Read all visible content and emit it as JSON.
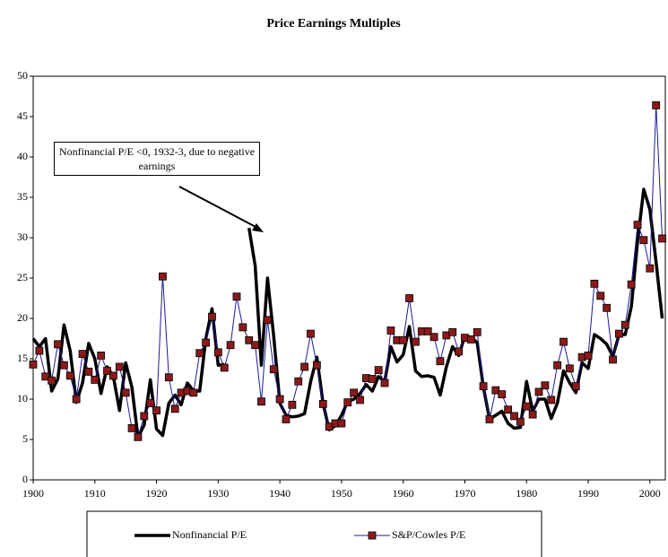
{
  "chart_data": {
    "type": "line",
    "title": "Price Earnings Multiples",
    "annotation": "Nonfinancial P/E <0, 1932-3, due to negative earnings",
    "x": [
      1900,
      1901,
      1902,
      1903,
      1904,
      1905,
      1906,
      1907,
      1908,
      1909,
      1910,
      1911,
      1912,
      1913,
      1914,
      1915,
      1916,
      1917,
      1918,
      1919,
      1920,
      1921,
      1922,
      1923,
      1924,
      1925,
      1926,
      1927,
      1928,
      1929,
      1930,
      1931,
      1932,
      1933,
      1934,
      1935,
      1936,
      1937,
      1938,
      1939,
      1940,
      1941,
      1942,
      1943,
      1944,
      1945,
      1946,
      1947,
      1948,
      1949,
      1950,
      1951,
      1952,
      1953,
      1954,
      1955,
      1956,
      1957,
      1958,
      1959,
      1960,
      1961,
      1962,
      1963,
      1964,
      1965,
      1966,
      1967,
      1968,
      1969,
      1970,
      1971,
      1972,
      1973,
      1974,
      1975,
      1976,
      1977,
      1978,
      1979,
      1980,
      1981,
      1982,
      1983,
      1984,
      1985,
      1986,
      1987,
      1988,
      1989,
      1990,
      1991,
      1992,
      1993,
      1994,
      1995,
      1996,
      1997,
      1998,
      1999,
      2000,
      2001,
      2002
    ],
    "series": [
      {
        "name": "Nonfinancial P/E",
        "color": "#000000",
        "marker": false,
        "values": [
          17.5,
          16.5,
          17.5,
          11,
          12.5,
          19.2,
          16,
          9.6,
          12,
          16.9,
          15,
          10.7,
          14,
          12.8,
          8.6,
          14.5,
          11.5,
          5.3,
          6.8,
          12.4,
          6.3,
          5.5,
          9.5,
          10.5,
          9.3,
          12,
          11,
          11,
          17.5,
          21.2,
          14.2,
          14.3,
          null,
          null,
          null,
          31.2,
          26.5,
          14.2,
          25,
          17.8,
          9.5,
          8,
          7.8,
          7.9,
          8.2,
          12.2,
          15.2,
          9.5,
          6.2,
          6.7,
          8,
          9.7,
          10,
          10.7,
          11.8,
          11,
          12.8,
          12.2,
          16.5,
          14.6,
          15.5,
          19,
          13.5,
          12.8,
          12.9,
          12.7,
          10.5,
          14,
          16.5,
          15.4,
          17.8,
          17.7,
          17,
          11.5,
          7.5,
          8,
          8.5,
          7,
          6.4,
          6.5,
          12.2,
          8.5,
          10,
          10,
          7.6,
          9.5,
          13.5,
          12,
          10.8,
          14.5,
          13.8,
          18,
          17.5,
          16.8,
          15.3,
          18,
          18,
          21.5,
          29.5,
          36,
          33.5,
          27,
          20
        ]
      },
      {
        "name": "S&P/Cowles P/E",
        "color": "#1a1a9c",
        "marker": true,
        "marker_color": "#8b1a1a",
        "values": [
          14.3,
          16,
          12.8,
          12.3,
          16.8,
          14.2,
          12.9,
          10,
          15.6,
          13.4,
          12.4,
          15.4,
          13.5,
          12.9,
          14,
          10.8,
          6.4,
          5.3,
          7.9,
          9.5,
          8.6,
          25.2,
          12.7,
          8.8,
          10.8,
          11,
          10.8,
          15.7,
          17,
          20.2,
          15.8,
          13.9,
          16.7,
          22.7,
          18.9,
          17.3,
          16.7,
          9.7,
          19.8,
          13.7,
          10,
          7.5,
          9.3,
          12.2,
          14,
          18.1,
          14.2,
          9.4,
          6.6,
          7,
          7,
          9.6,
          10.8,
          9.9,
          12.6,
          12.5,
          13.6,
          12,
          18.5,
          17.3,
          17.3,
          22.5,
          17.1,
          18.4,
          18.4,
          17.7,
          14.7,
          17.9,
          18.3,
          15.9,
          17.6,
          17.4,
          18.3,
          11.6,
          7.5,
          11.1,
          10.6,
          8.7,
          7.9,
          7.2,
          9.1,
          8.1,
          10.9,
          11.7,
          9.9,
          14.2,
          17.1,
          13.8,
          11.6,
          15.2,
          15.4,
          24.3,
          22.8,
          21.3,
          14.9,
          18.1,
          19.2,
          24.2,
          31.6,
          29.7,
          26.2,
          46.4,
          29.9
        ]
      }
    ],
    "xlim": [
      1900,
      2002.5
    ],
    "xticks": [
      1900,
      1910,
      1920,
      1930,
      1940,
      1950,
      1960,
      1970,
      1980,
      1990,
      2000
    ],
    "ylim": [
      0,
      50
    ],
    "yticks": [
      0,
      5,
      10,
      15,
      20,
      25,
      30,
      35,
      40,
      45,
      50
    ]
  }
}
